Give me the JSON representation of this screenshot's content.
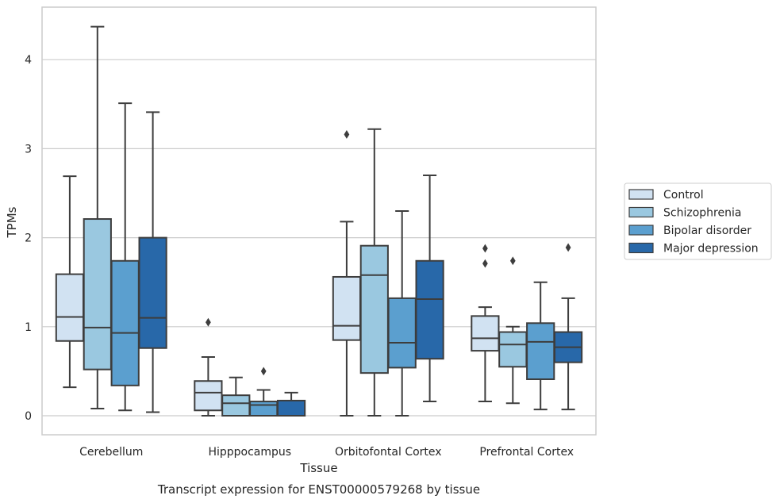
{
  "chart_data": {
    "type": "box",
    "title": "Transcript expression for ENST00000579268 by tissue",
    "xlabel": "Tissue",
    "ylabel": "TPMs",
    "categories": [
      "Cerebellum",
      "Hipppocampus",
      "Orbitofontal Cortex",
      "Prefrontal Cortex"
    ],
    "yticks": [
      "0",
      "1",
      "2",
      "3",
      "4"
    ],
    "ylim": [
      -0.2,
      4.6
    ],
    "grid": "horizontal",
    "legend_position": "right",
    "series": [
      {
        "name": "Control",
        "color": "#d1e2f2",
        "boxes": [
          {
            "whislo": 0.32,
            "q1": 0.84,
            "med": 1.11,
            "q3": 1.59,
            "whishi": 2.69,
            "fliers": []
          },
          {
            "whislo": 0.0,
            "q1": 0.06,
            "med": 0.26,
            "q3": 0.39,
            "whishi": 0.66,
            "fliers": [
              1.05
            ]
          },
          {
            "whislo": 0.0,
            "q1": 0.85,
            "med": 1.01,
            "q3": 1.56,
            "whishi": 2.18,
            "fliers": [
              3.16
            ]
          },
          {
            "whislo": 0.16,
            "q1": 0.73,
            "med": 0.87,
            "q3": 1.12,
            "whishi": 1.22,
            "fliers": [
              1.71,
              1.88
            ]
          }
        ]
      },
      {
        "name": "Schizophrenia",
        "color": "#9ac8e0",
        "boxes": [
          {
            "whislo": 0.08,
            "q1": 0.52,
            "med": 0.99,
            "q3": 2.21,
            "whishi": 4.37,
            "fliers": []
          },
          {
            "whislo": 0.0,
            "q1": 0.0,
            "med": 0.14,
            "q3": 0.23,
            "whishi": 0.43,
            "fliers": []
          },
          {
            "whislo": 0.0,
            "q1": 0.48,
            "med": 1.58,
            "q3": 1.91,
            "whishi": 3.22,
            "fliers": []
          },
          {
            "whislo": 0.14,
            "q1": 0.55,
            "med": 0.8,
            "q3": 0.94,
            "whishi": 1.0,
            "fliers": [
              1.74
            ]
          }
        ]
      },
      {
        "name": "Bipolar disorder",
        "color": "#5b9fcf",
        "boxes": [
          {
            "whislo": 0.06,
            "q1": 0.34,
            "med": 0.93,
            "q3": 1.74,
            "whishi": 3.51,
            "fliers": []
          },
          {
            "whislo": 0.0,
            "q1": 0.0,
            "med": 0.12,
            "q3": 0.16,
            "whishi": 0.29,
            "fliers": [
              0.5
            ]
          },
          {
            "whislo": 0.0,
            "q1": 0.54,
            "med": 0.82,
            "q3": 1.32,
            "whishi": 2.3,
            "fliers": []
          },
          {
            "whislo": 0.07,
            "q1": 0.41,
            "med": 0.83,
            "q3": 1.04,
            "whishi": 1.5,
            "fliers": []
          }
        ]
      },
      {
        "name": "Major depression",
        "color": "#2868a9",
        "boxes": [
          {
            "whislo": 0.04,
            "q1": 0.76,
            "med": 1.1,
            "q3": 2.0,
            "whishi": 3.41,
            "fliers": []
          },
          {
            "whislo": 0.0,
            "q1": 0.0,
            "med": 0.0,
            "q3": 0.17,
            "whishi": 0.26,
            "fliers": []
          },
          {
            "whislo": 0.16,
            "q1": 0.64,
            "med": 1.31,
            "q3": 1.74,
            "whishi": 2.7,
            "fliers": []
          },
          {
            "whislo": 0.07,
            "q1": 0.6,
            "med": 0.77,
            "q3": 0.94,
            "whishi": 1.32,
            "fliers": [
              1.89
            ]
          }
        ]
      }
    ]
  },
  "colors": {
    "grid": "#cccccc",
    "frame": "#cccccc",
    "box_edge": "#3d3d3d",
    "text": "#262626"
  }
}
